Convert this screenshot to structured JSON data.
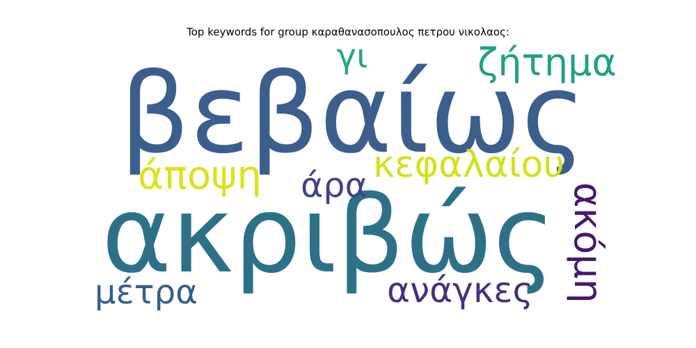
{
  "title": "Top keywords for group καραθανασοπουλος πετρου νικολαος:",
  "words": [
    {
      "text": "βεβαίως",
      "color": "#3b5e8c"
    },
    {
      "text": "ακριβώς",
      "color": "#2d7189"
    },
    {
      "text": "ζήτημα",
      "color": "#21a087"
    },
    {
      "text": "γι",
      "color": "#22a785"
    },
    {
      "text": "άποψη",
      "color": "#dde318"
    },
    {
      "text": "κεφαλαίου",
      "color": "#d2e21b"
    },
    {
      "text": "άρα",
      "color": "#414287"
    },
    {
      "text": "ακόμη",
      "color": "#46196d"
    },
    {
      "text": "μέτρα",
      "color": "#365d8d"
    },
    {
      "text": "ανάγκες",
      "color": "#472f7d"
    }
  ]
}
